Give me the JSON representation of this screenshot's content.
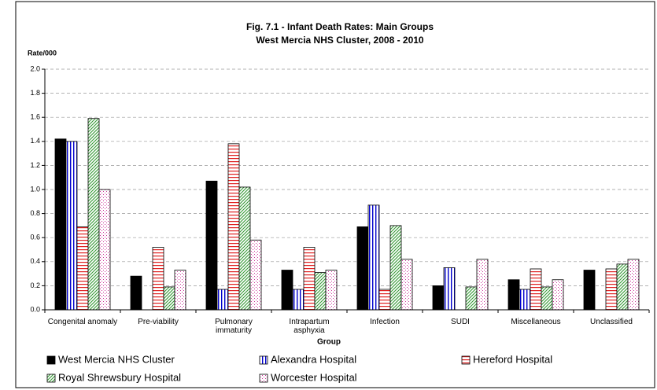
{
  "chart_data": {
    "type": "bar",
    "title": "Fig. 7.1 - Infant Death Rates: Main Groups",
    "subtitle": "West Mercia NHS Cluster, 2008 - 2010",
    "y_label": "Rate/000",
    "x_label": "Group",
    "categories": [
      "Congenital anomaly",
      "Pre-viability",
      "Pulmonary immaturity",
      "Intrapartum asphyxia",
      "Infection",
      "SUDI",
      "Miscellaneous",
      "Unclassified"
    ],
    "series": [
      {
        "name": "West Mercia NHS Cluster",
        "color": "#000000",
        "pattern": "solid",
        "values": [
          1.42,
          0.28,
          1.07,
          0.33,
          0.69,
          0.2,
          0.25,
          0.33
        ]
      },
      {
        "name": "Alexandra Hospital",
        "color": "#0000cc",
        "pattern": "vertical",
        "values": [
          1.4,
          null,
          0.17,
          0.17,
          0.87,
          0.35,
          0.17,
          null
        ]
      },
      {
        "name": "Hereford Hospital",
        "color": "#e02020",
        "pattern": "horizontal",
        "values": [
          0.69,
          0.52,
          1.38,
          0.52,
          0.17,
          null,
          0.34,
          0.34
        ]
      },
      {
        "name": "Royal Shrewsbury Hospital",
        "color": "#339933",
        "pattern": "diagonal",
        "values": [
          1.59,
          0.19,
          1.02,
          0.31,
          0.7,
          0.19,
          0.19,
          0.38
        ]
      },
      {
        "name": "Worcester Hospital",
        "color": "#cc3399",
        "pattern": "dotted",
        "values": [
          1.0,
          0.33,
          0.58,
          0.33,
          0.42,
          0.42,
          0.25,
          0.42
        ]
      }
    ],
    "ylim": [
      0,
      2
    ],
    "yticks": [
      {
        "value": 0,
        "label": "0.0"
      },
      {
        "value": 0.2,
        "label": "0.2"
      },
      {
        "value": 0.4,
        "label": "0.4"
      },
      {
        "value": 0.6,
        "label": "0.6"
      },
      {
        "value": 0.8,
        "label": "0.8"
      },
      {
        "value": 1,
        "label": "1.0"
      },
      {
        "value": 1.2,
        "label": "1.2"
      },
      {
        "value": 1.4,
        "label": "1.4"
      },
      {
        "value": 1.6,
        "label": "1.6"
      },
      {
        "value": 1.8,
        "label": "1.8"
      },
      {
        "value": 2,
        "label": "2.0"
      }
    ],
    "grid": true,
    "legend": "bottom"
  }
}
